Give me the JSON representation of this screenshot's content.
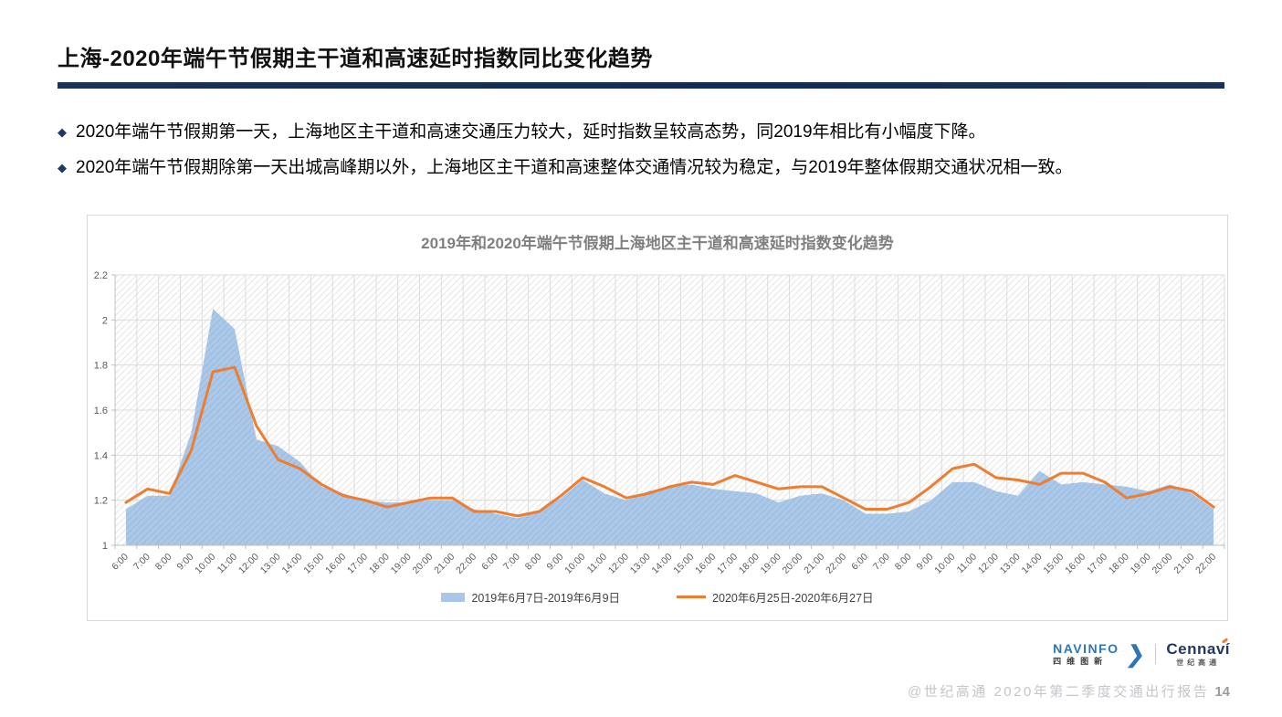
{
  "header": {
    "title": "上海-2020年端午节假期主干道和高速延时指数同比变化趋势"
  },
  "bullets": {
    "marker": "◆",
    "items": [
      "2020年端午节假期第一天，上海地区主干道和高速交通压力较大，延时指数呈较高态势，同2019年相比有小幅度下降。",
      "2020年端午节假期除第一天出城高峰期以外，上海地区主干道和高速整体交通情况较为稳定，与2019年整体假期交通状况相一致。"
    ]
  },
  "chart_data": {
    "type": "area",
    "title": "2019年和2020年端午节假期上海地区主干道和高速延时指数变化趋势",
    "xlabel": "",
    "ylabel": "",
    "ylim": [
      1,
      2.2
    ],
    "yticks": [
      1,
      1.2,
      1.4,
      1.6,
      1.8,
      2,
      2.2
    ],
    "grid": true,
    "legend_position": "bottom",
    "x": [
      "6:00",
      "7:00",
      "8:00",
      "9:00",
      "10:00",
      "11:00",
      "12:00",
      "13:00",
      "14:00",
      "15:00",
      "16:00",
      "17:00",
      "18:00",
      "19:00",
      "20:00",
      "21:00",
      "22:00",
      "6:00",
      "7:00",
      "8:00",
      "9:00",
      "10:00",
      "11:00",
      "12:00",
      "13:00",
      "14:00",
      "15:00",
      "16:00",
      "17:00",
      "18:00",
      "19:00",
      "20:00",
      "21:00",
      "22:00",
      "6:00",
      "7:00",
      "8:00",
      "9:00",
      "10:00",
      "11:00",
      "12:00",
      "13:00",
      "14:00",
      "15:00",
      "16:00",
      "17:00",
      "18:00",
      "19:00",
      "20:00",
      "21:00",
      "22:00"
    ],
    "series": [
      {
        "name": "2019年6月7日-2019年6月9日",
        "type": "area",
        "color": "#a9c6e8",
        "values": [
          1.16,
          1.22,
          1.22,
          1.5,
          2.05,
          1.96,
          1.47,
          1.44,
          1.37,
          1.26,
          1.23,
          1.2,
          1.19,
          1.19,
          1.2,
          1.2,
          1.16,
          1.14,
          1.12,
          1.15,
          1.21,
          1.29,
          1.23,
          1.2,
          1.24,
          1.26,
          1.27,
          1.25,
          1.24,
          1.23,
          1.19,
          1.22,
          1.23,
          1.2,
          1.14,
          1.14,
          1.15,
          1.2,
          1.28,
          1.28,
          1.24,
          1.22,
          1.33,
          1.27,
          1.28,
          1.27,
          1.26,
          1.24,
          1.27,
          1.23,
          1.16
        ]
      },
      {
        "name": "2020年6月25日-2020年6月27日",
        "type": "line",
        "color": "#ed7d31",
        "values": [
          1.19,
          1.25,
          1.23,
          1.42,
          1.77,
          1.79,
          1.53,
          1.38,
          1.34,
          1.27,
          1.22,
          1.2,
          1.17,
          1.19,
          1.21,
          1.21,
          1.15,
          1.15,
          1.13,
          1.15,
          1.22,
          1.3,
          1.26,
          1.21,
          1.23,
          1.26,
          1.28,
          1.27,
          1.31,
          1.28,
          1.25,
          1.26,
          1.26,
          1.21,
          1.16,
          1.16,
          1.19,
          1.26,
          1.34,
          1.36,
          1.3,
          1.29,
          1.27,
          1.32,
          1.32,
          1.28,
          1.21,
          1.23,
          1.26,
          1.24,
          1.17
        ]
      }
    ]
  },
  "logos": {
    "navinfo": "NAVINFO",
    "navinfo_cn": "四维图新",
    "chevron": "❯",
    "cennavi": "Cennaví",
    "cennavi_cn": "世纪高通"
  },
  "footer": {
    "credit": "@世纪高通  2020年第二季度交通出行报告",
    "page": "14"
  }
}
